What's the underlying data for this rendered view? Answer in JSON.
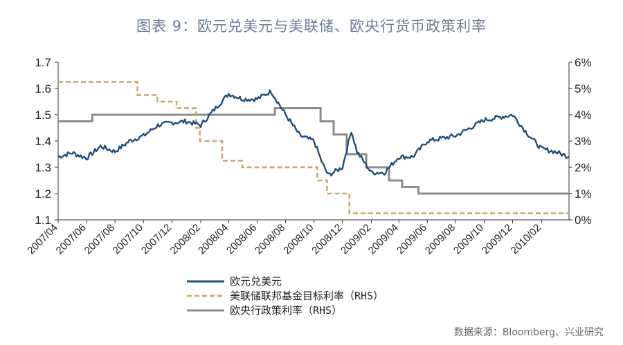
{
  "page": {
    "title": "图表 9：欧元兑美元与美联储、欧央行货币政策利率",
    "source": "数据来源：Bloomberg、兴业研究"
  },
  "chart_data": {
    "type": "line",
    "x_tick_labels": [
      "2007/04",
      "2007/06",
      "2007/08",
      "2007/10",
      "2007/12",
      "2008/02",
      "2008/04",
      "2008/06",
      "2008/08",
      "2008/10",
      "2008/12",
      "2009/02",
      "2009/04",
      "2009/06",
      "2009/08",
      "2009/10",
      "2009/12",
      "2010/02"
    ],
    "x_range": [
      "2007-04",
      "2010-04"
    ],
    "left_axis": {
      "ticks": [
        "1.1",
        "1.2",
        "1.3",
        "1.4",
        "1.5",
        "1.6",
        "1.7"
      ],
      "ylim": [
        1.1,
        1.7
      ]
    },
    "right_axis": {
      "ticks": [
        "0%",
        "1%",
        "2%",
        "3%",
        "4%",
        "5%",
        "6%"
      ],
      "ylim": [
        0,
        6
      ]
    },
    "colors": {
      "eurusd": "#1f4e79",
      "fed": "#c9a56a",
      "ecb": "#8c8c8c"
    },
    "series": [
      {
        "name": "欧元兑美元",
        "axis": "left",
        "x": [
          "2007-04-01",
          "2007-05-01",
          "2007-06-01",
          "2007-07-01",
          "2007-08-01",
          "2007-09-01",
          "2007-10-01",
          "2007-11-01",
          "2007-12-01",
          "2008-01-01",
          "2008-02-01",
          "2008-03-01",
          "2008-04-01",
          "2008-05-01",
          "2008-06-01",
          "2008-07-01",
          "2008-08-01",
          "2008-09-01",
          "2008-10-01",
          "2008-10-20",
          "2008-11-01",
          "2008-12-01",
          "2008-12-20",
          "2009-01-01",
          "2009-02-01",
          "2009-03-01",
          "2009-04-01",
          "2009-05-01",
          "2009-06-01",
          "2009-07-01",
          "2009-08-01",
          "2009-09-01",
          "2009-10-01",
          "2009-11-01",
          "2009-12-01",
          "2010-01-01",
          "2010-02-01",
          "2010-03-01",
          "2010-04-01"
        ],
        "values": [
          1.34,
          1.355,
          1.335,
          1.38,
          1.36,
          1.4,
          1.42,
          1.46,
          1.47,
          1.475,
          1.46,
          1.52,
          1.58,
          1.56,
          1.56,
          1.59,
          1.5,
          1.42,
          1.4,
          1.31,
          1.27,
          1.3,
          1.44,
          1.36,
          1.28,
          1.28,
          1.34,
          1.34,
          1.4,
          1.41,
          1.42,
          1.45,
          1.48,
          1.49,
          1.5,
          1.43,
          1.37,
          1.36,
          1.34
        ]
      },
      {
        "name": "美联储联邦基金目标利率（RHS）",
        "axis": "right",
        "x": [
          "2007-04-01",
          "2007-09-18",
          "2007-10-31",
          "2007-12-11",
          "2008-01-22",
          "2008-01-30",
          "2008-03-18",
          "2008-04-30",
          "2008-10-08",
          "2008-10-29",
          "2008-12-16",
          "2010-04-01"
        ],
        "values": [
          5.25,
          4.75,
          4.5,
          4.25,
          3.5,
          3.0,
          2.25,
          2.0,
          1.5,
          1.0,
          0.25,
          0.25
        ]
      },
      {
        "name": "欧央行政策利率（RHS）",
        "axis": "right",
        "x": [
          "2007-04-01",
          "2007-06-13",
          "2008-07-09",
          "2008-10-15",
          "2008-11-12",
          "2008-12-10",
          "2009-01-21",
          "2009-03-11",
          "2009-04-08",
          "2009-05-13",
          "2010-04-01"
        ],
        "values": [
          3.75,
          4.0,
          4.25,
          3.75,
          3.25,
          2.5,
          2.0,
          1.5,
          1.25,
          1.0,
          1.0
        ]
      }
    ],
    "legend": "bottom"
  }
}
